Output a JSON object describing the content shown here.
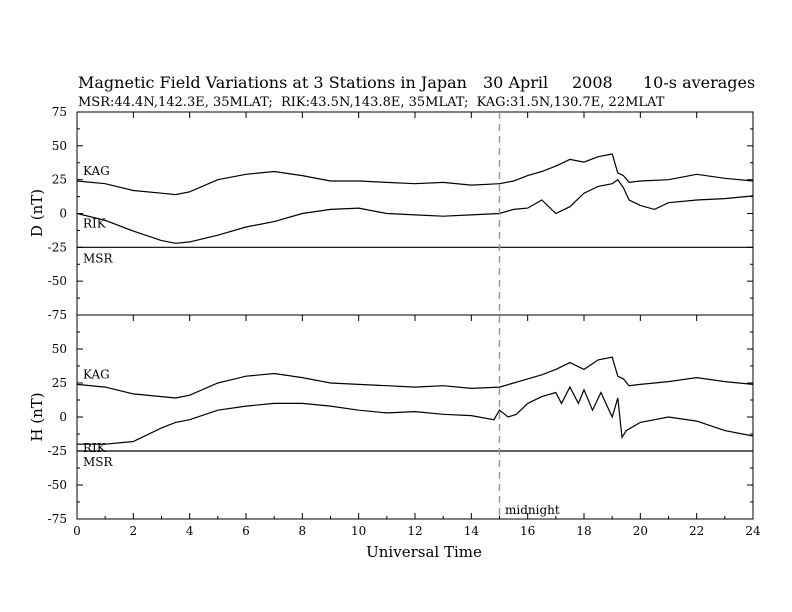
{
  "chart_data": {
    "type": "line",
    "title": {
      "main": "Magnetic Field Variations at 3 Stations in Japan",
      "date": "30 April",
      "year": "2008",
      "averaging": "10-s averages"
    },
    "subtitle": "MSR:44.4N,142.3E, 35MLAT;  RIK:43.5N,143.8E, 35MLAT;  KAG:31.5N,130.7E, 22MLAT",
    "xlabel": "Universal Time",
    "xlim": [
      0,
      24
    ],
    "x_ticks": [
      "0",
      "2",
      "4",
      "6",
      "8",
      "10",
      "12",
      "14",
      "16",
      "18",
      "20",
      "22",
      "24"
    ],
    "y_ticks": [
      "75",
      "50",
      "25",
      "0",
      "-25",
      "-50",
      "-75"
    ],
    "annotation": {
      "x": 15,
      "label": "midnight"
    },
    "panels": [
      {
        "ylabel": "D (nT)",
        "ylim": [
          -75,
          75
        ],
        "series": [
          {
            "name": "KAG",
            "x": [
              0,
              1,
              2,
              3,
              3.5,
              4,
              5,
              6,
              7,
              8,
              9,
              10,
              11,
              12,
              13,
              14,
              15,
              15.5,
              16,
              16.5,
              17,
              17.5,
              18,
              18.5,
              19,
              19.2,
              19.4,
              19.6,
              20,
              21,
              22,
              23,
              24
            ],
            "y": [
              24,
              22,
              17,
              15,
              14,
              16,
              25,
              29,
              31,
              28,
              24,
              24,
              23,
              22,
              23,
              21,
              22,
              24,
              28,
              31,
              35,
              40,
              38,
              42,
              44,
              30,
              28,
              23,
              24,
              25,
              29,
              26,
              24
            ]
          },
          {
            "name": "RIK",
            "x": [
              0,
              1,
              2,
              3,
              3.5,
              4,
              5,
              6,
              7,
              8,
              9,
              10,
              11,
              12,
              13,
              14,
              15,
              15.5,
              16,
              16.5,
              17,
              17.5,
              18,
              18.5,
              19,
              19.2,
              19.4,
              19.6,
              20,
              20.5,
              21,
              22,
              23,
              24
            ],
            "y": [
              0,
              -5,
              -13,
              -20,
              -22,
              -21,
              -16,
              -10,
              -6,
              0,
              3,
              4,
              0,
              -1,
              -2,
              -1,
              0,
              3,
              4,
              10,
              0,
              5,
              15,
              20,
              22,
              25,
              19,
              10,
              6,
              3,
              8,
              10,
              11,
              13
            ]
          },
          {
            "name": "MSR",
            "x": [
              0,
              24
            ],
            "y": [
              -25,
              -25
            ]
          }
        ]
      },
      {
        "ylabel": "H (nT)",
        "ylim": [
          -75,
          75
        ],
        "series": [
          {
            "name": "KAG",
            "x": [
              0,
              1,
              2,
              3,
              3.5,
              4,
              5,
              6,
              7,
              8,
              9,
              10,
              11,
              12,
              13,
              14,
              15,
              15.5,
              16,
              16.5,
              17,
              17.5,
              18,
              18.5,
              19,
              19.2,
              19.4,
              19.6,
              20,
              21,
              22,
              23,
              24
            ],
            "y": [
              24,
              22,
              17,
              15,
              14,
              16,
              25,
              30,
              32,
              29,
              25,
              24,
              23,
              22,
              23,
              21,
              22,
              25,
              28,
              31,
              35,
              40,
              35,
              42,
              44,
              30,
              28,
              23,
              24,
              26,
              29,
              26,
              24
            ]
          },
          {
            "name": "RIK",
            "x": [
              0,
              1,
              2,
              3,
              3.5,
              4,
              5,
              6,
              7,
              8,
              9,
              10,
              11,
              12,
              13,
              14,
              14.8,
              15,
              15.3,
              15.6,
              16,
              16.5,
              17,
              17.2,
              17.5,
              17.8,
              18,
              18.3,
              18.6,
              19,
              19.2,
              19.35,
              19.5,
              20,
              21,
              22,
              23,
              24
            ],
            "y": [
              -20,
              -20,
              -18,
              -8,
              -4,
              -2,
              5,
              8,
              10,
              10,
              8,
              5,
              3,
              4,
              2,
              1,
              -2,
              5,
              0,
              2,
              10,
              15,
              18,
              10,
              22,
              10,
              20,
              5,
              18,
              0,
              14,
              -15,
              -10,
              -4,
              0,
              -3,
              -10,
              -14
            ]
          },
          {
            "name": "MSR",
            "x": [
              0,
              24
            ],
            "y": [
              -25,
              -25
            ]
          }
        ]
      }
    ]
  }
}
